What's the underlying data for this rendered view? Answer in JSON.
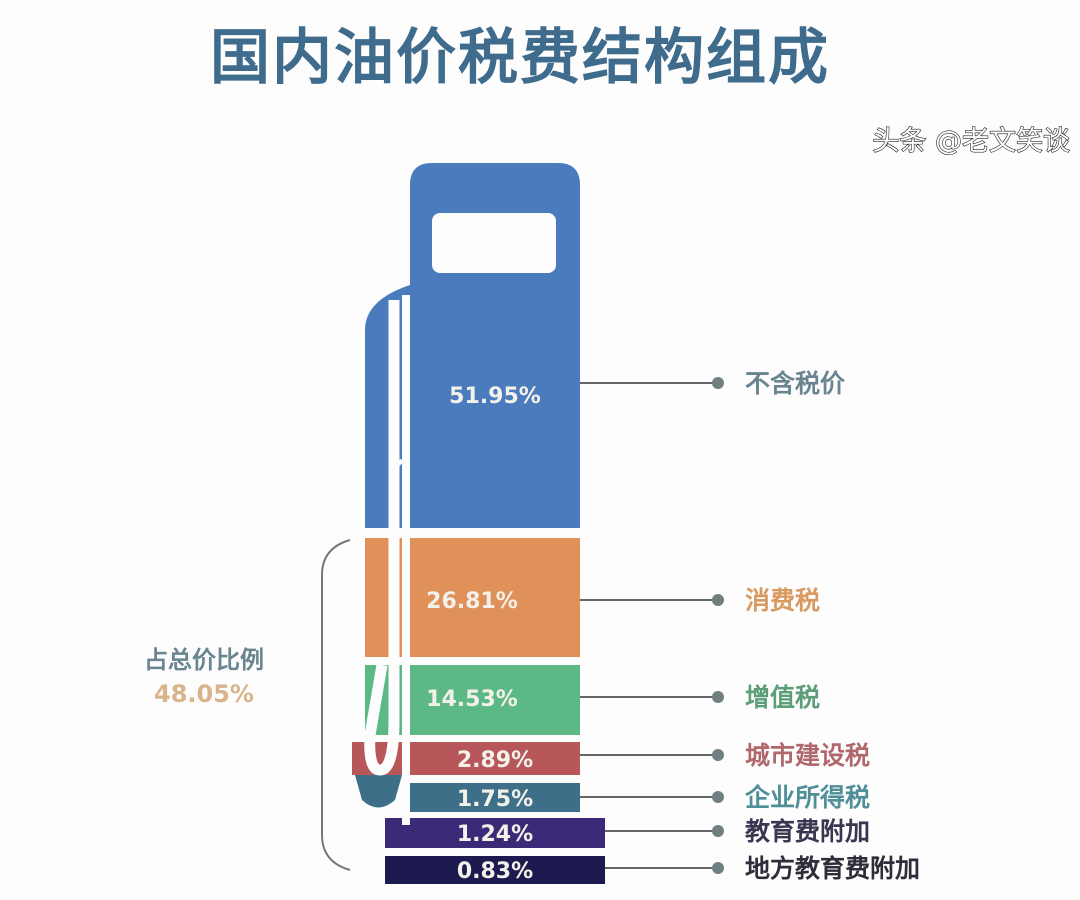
{
  "chart_data": {
    "type": "stacked-bar",
    "title": "国内油价税费结构组成",
    "categories": [
      "不含税价",
      "消费税",
      "增值税",
      "城市建设税",
      "企业所得税",
      "教育费附加",
      "地方教育费附加"
    ],
    "values": [
      51.95,
      26.81,
      14.53,
      2.89,
      1.75,
      1.24,
      0.83
    ],
    "value_labels": [
      "51.95%",
      "26.81%",
      "14.53%",
      "2.89%",
      "1.75%",
      "1.24%",
      "0.83%"
    ],
    "colors": [
      "#4a7bbd",
      "#e0915a",
      "#5cb985",
      "#b8575a",
      "#3d7088",
      "#3a2a78",
      "#1c1a4e"
    ],
    "label_colors": [
      "#6a8590",
      "#d99a60",
      "#5c9e78",
      "#b0686c",
      "#4f8f98",
      "#3a3550",
      "#2e2e3a"
    ],
    "bracket": {
      "label": "占总价比例",
      "value": "48.05%",
      "label_color": "#6a8590",
      "value_color": "#d9b48a"
    },
    "shape": "fuel-pump"
  },
  "watermark": "头条 @老文笑谈"
}
